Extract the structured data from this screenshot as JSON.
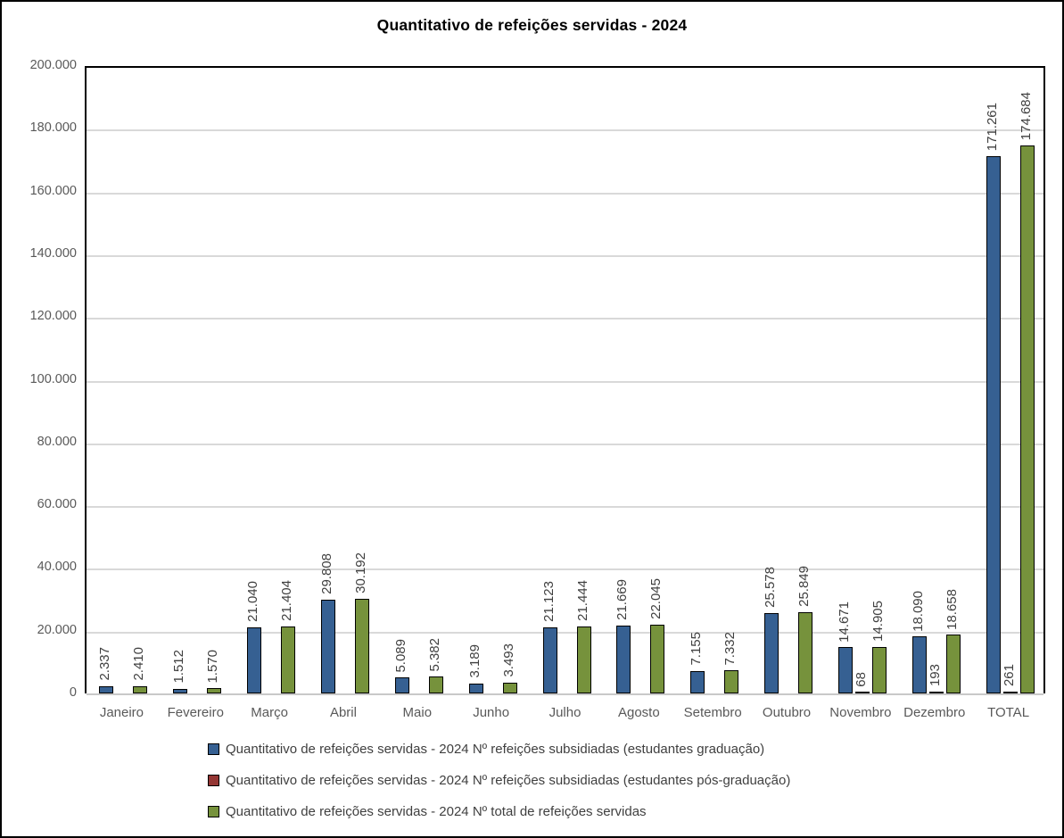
{
  "title": "Quantitativo de refeições servidas - 2024",
  "chart_data": {
    "type": "bar",
    "title": "Quantitativo de refeições servidas - 2024",
    "categories": [
      "Janeiro",
      "Fevereiro",
      "Março",
      "Abril",
      "Maio",
      "Junho",
      "Julho",
      "Agosto",
      "Setembro",
      "Outubro",
      "Novembro",
      "Dezembro",
      "TOTAL"
    ],
    "series": [
      {
        "name": "Quantitativo de refeições servidas - 2024 Nº refeições subsidiadas (estudantes graduação)",
        "color": "#366092",
        "values": [
          2337,
          1512,
          21040,
          29808,
          5089,
          3189,
          21123,
          21669,
          7155,
          25578,
          14671,
          18090,
          171261
        ],
        "labels": [
          "2.337",
          "1.512",
          "21.040",
          "29.808",
          "5.089",
          "3.189",
          "21.123",
          "21.669",
          "7.155",
          "25.578",
          "14.671",
          "18.090",
          "171.261"
        ]
      },
      {
        "name": "Quantitativo de refeições servidas - 2024 Nº refeições subsidiadas (estudantes pós-graduação)",
        "color": "#943634",
        "values": [
          null,
          null,
          null,
          null,
          null,
          null,
          null,
          null,
          null,
          null,
          68,
          193,
          261
        ],
        "labels": [
          null,
          null,
          null,
          null,
          null,
          null,
          null,
          null,
          null,
          null,
          "68",
          "193",
          "261"
        ]
      },
      {
        "name": "Quantitativo de refeições servidas - 2024 Nº total de refeições servidas",
        "color": "#76923C",
        "values": [
          2410,
          1570,
          21404,
          30192,
          5382,
          3493,
          21444,
          22045,
          7332,
          25849,
          14905,
          18658,
          174684
        ],
        "labels": [
          "2.410",
          "1.570",
          "21.404",
          "30.192",
          "5.382",
          "3.493",
          "21.444",
          "22.045",
          "7.332",
          "25.849",
          "14.905",
          "18.658",
          "174.684"
        ]
      }
    ],
    "ylim": [
      0,
      200000
    ],
    "ytick_step": 20000,
    "ytick_labels": [
      "0",
      "20.000",
      "40.000",
      "60.000",
      "80.000",
      "100.000",
      "120.000",
      "140.000",
      "160.000",
      "180.000",
      "200.000"
    ],
    "grid": true,
    "legend_position": "bottom",
    "bar_outline_color": "#000000",
    "gridline_color": "#d9d9d9",
    "axis_text_color": "#595959",
    "data_label_color": "#3f3f3f"
  }
}
